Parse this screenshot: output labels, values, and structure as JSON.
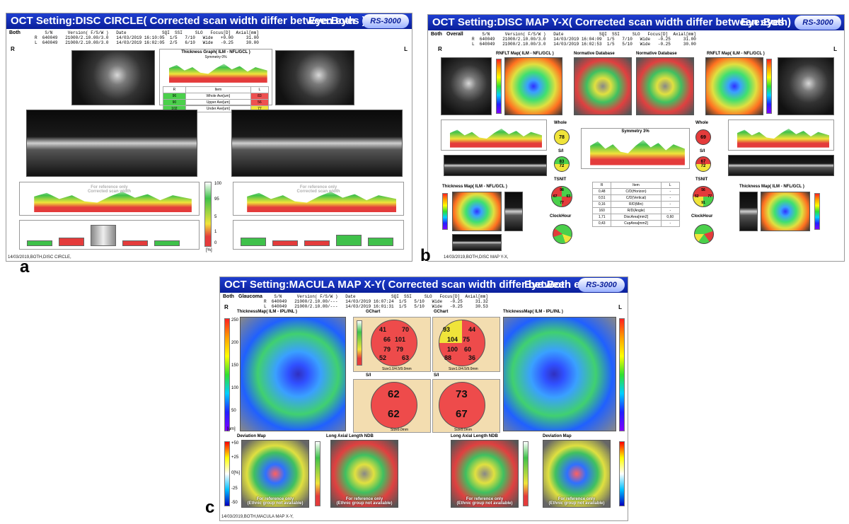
{
  "panel_a": {
    "title": "OCT Setting:DISC CIRCLE( Corrected scan width differ between eyes )",
    "eye": "Eye:Both",
    "logo": "RS-3000",
    "header_label": "Both",
    "info_lines": "    S/N      Version( F/S/W )   Date              SQI  SSI     SLO   Focus[D]  Axial[mm]\nR  640049   21000/2.10.00/3.0   14/03/2019 16:10:05  1/5   7/10   Wide   +0.00     31.00\nL  640049   21000/2.10.00/3.0   14/03/2019 16:02:05  2/5   6/10   Wide   -0.25     30.00",
    "r": "R",
    "l": "L",
    "thickness_graph_title": "Thickness Graph( ILM - NFL/GCL )",
    "symmetry": "Symmetry 0%",
    "center_table": [
      [
        "R",
        "Item",
        "L"
      ],
      [
        "96",
        "Whole Ave[um]",
        "83"
      ],
      [
        "90",
        "Upper Ave[um]",
        "56"
      ],
      [
        "102",
        "Under Ave[um]",
        "77"
      ]
    ],
    "ref_text": "For reference only\nCorrected scan width",
    "scale": [
      "100",
      "95",
      "5",
      "1",
      "0",
      "[%]"
    ],
    "footer": "14/03/2019,BOTH,DISC CIRCLE,",
    "letter": "a"
  },
  "panel_b": {
    "title": "OCT Setting:DISC MAP Y-X( Corrected scan width differ between eyes )",
    "eye": "Eye:Both",
    "logo": "RS-3000",
    "header_label": "Both",
    "header_sub": "Overall",
    "info_lines": "    S/N      Version( F/S/W )   Date              SQI  SSI     SLO   Focus[D]  Axial[mm]\nR  640049   21000/2.10.00/3.0   14/03/2019 16:04:09  1/5   7/10   Wide   -0.25     31.00\nL  640049   21000/2.10.00/3.0   14/03/2019 16:02:53  1/5   5/10   Wide   -0.25     30.00",
    "r": "R",
    "l": "L",
    "rnflt_title": "RNFLT Map( ILM - NFL/GCL )",
    "ndb_title": "Normative Database",
    "whole_label": "Whole",
    "si_label": "S/I",
    "tsnit_label": "TSNIT",
    "clock_label": "ClockHour",
    "thickness_map_title": "Thickness Map( ILM - NFL/GCL )",
    "symmetry": "Symmetry 3%",
    "right": {
      "whole": "78",
      "s": "83",
      "i": "72",
      "ts": "98",
      "tt": "67",
      "tn": "63",
      "ti": "77",
      "clock": [
        "86",
        "91",
        "76",
        "83",
        "110",
        "57",
        "34",
        "63",
        "106",
        "62",
        "71",
        "77"
      ]
    },
    "left": {
      "whole": "69",
      "s": "67",
      "i": "72",
      "ts": "56",
      "tt": "52",
      "tn": "77",
      "ti": "91",
      "clock": [
        "63",
        "56",
        "55",
        "74",
        "91",
        "41",
        "61",
        "40",
        "94",
        "90",
        "107",
        "77"
      ]
    },
    "table": [
      [
        "R",
        "Item",
        "L"
      ],
      [
        "0,48",
        "C/D(Horizon)",
        "-"
      ],
      [
        "0,51",
        "C/D(Vertical)",
        "-"
      ],
      [
        "0,16",
        "R/D(Min)",
        "-"
      ],
      [
        "160",
        "R/D(Angle)",
        "-"
      ],
      [
        "1,71",
        "DiscArea[mm2]",
        "0,60"
      ],
      [
        "0,43",
        "CupArea[mm2]",
        "-"
      ]
    ],
    "footer": "14/03/2019,BOTH,DISC MAP Y-X,",
    "letter": "b"
  },
  "panel_c": {
    "title": "OCT Setting:MACULA MAP X-Y( Corrected scan width differ between eyes )",
    "eye": "Eye:Both",
    "logo": "RS-3000",
    "header_label": "Both",
    "header_sub": "Glaucoma",
    "info_lines": "    S/N      Version( F/S/W )   Date              SQI  SSI     SLO   Focus[D]  Axial[mm]\nR  640049   21000/2.10.00/---   14/03/2019 16:07:24  1/5   5/10   Wide   -0.25     31.32\nL  640049   21000/2.10.00/---   14/03/2019 16:01:31  1/5   5/10   Wide   -0.25     30.53",
    "r": "R",
    "l": "L",
    "thickness_title": "ThicknessMap( ILM - IPL/INL )",
    "gchart_label": "GChart",
    "si_label": "S/I",
    "size1": "Size1.0/4.5/9.0mm",
    "size2": "Size9.0mm",
    "deviation_title": "Deviation Map",
    "ndb_title": "Long Axial Length NDB",
    "ref_text": "For reference only\n(Ethnic group not available)",
    "rainbow_scale": [
      "250",
      "200",
      "150",
      "100",
      "50",
      "[um]"
    ],
    "dev_scale": [
      "+50",
      "+25",
      "0[%]",
      "-25",
      "-50"
    ],
    "right": {
      "gchart": [
        "41",
        "70",
        "66",
        "101",
        "79",
        "79",
        "52",
        "63"
      ],
      "s": "62",
      "i": "62"
    },
    "left": {
      "gchart": [
        "93",
        "44",
        "104",
        "75",
        "100",
        "60",
        "88",
        "36"
      ],
      "s": "73",
      "i": "67"
    },
    "footer": "14/03/2019,BOTH,MACULA MAP X-Y,",
    "letter": "c"
  }
}
